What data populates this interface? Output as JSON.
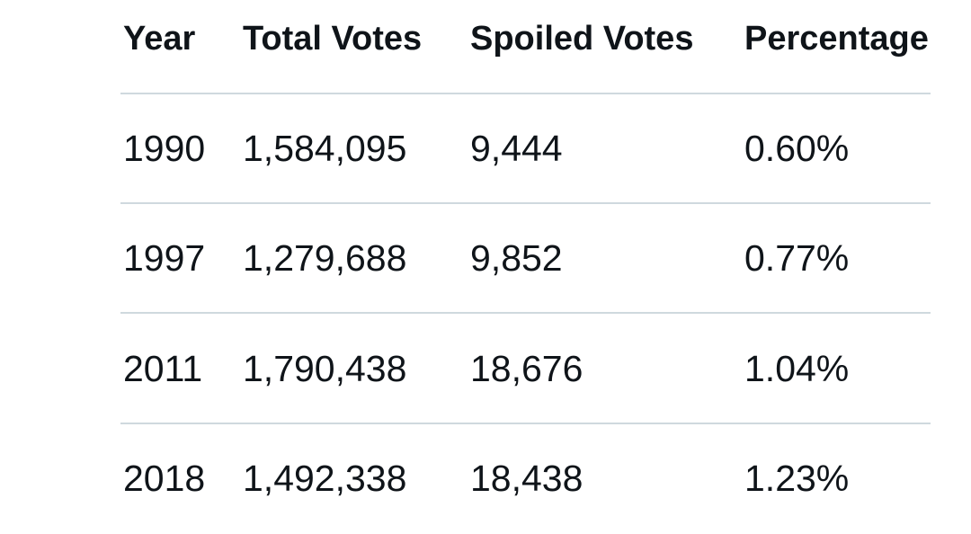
{
  "table": {
    "header": [
      "Year",
      "Total Votes",
      "Spoiled Votes",
      "Percentage"
    ],
    "rows": [
      [
        "1990",
        "1,584,095",
        "9,444",
        "0.60%"
      ],
      [
        "1997",
        "1,279,688",
        "9,852",
        "0.77%"
      ],
      [
        "2011",
        "1,790,438",
        "18,676",
        "1.04%"
      ],
      [
        "2018",
        "1,492,338",
        "18,438",
        "1.23%"
      ]
    ]
  }
}
